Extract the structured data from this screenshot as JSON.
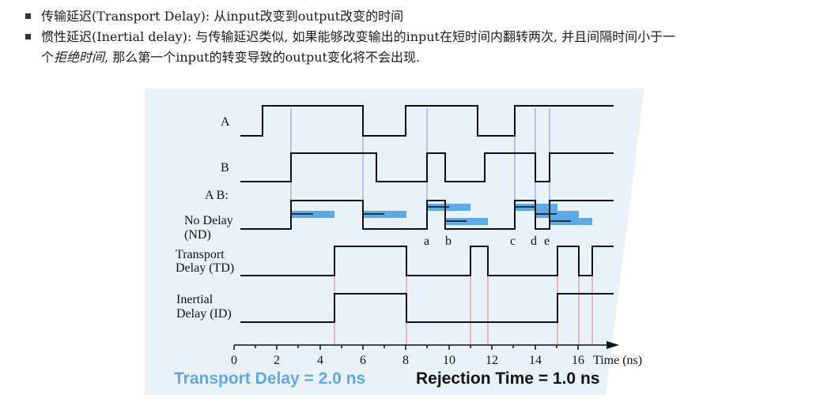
{
  "bullets": [
    {
      "text": "传输延迟(Transport Delay): 从input改变到output改变的时间"
    },
    {
      "line1": "惯性延迟(Inertial delay): 与传输延迟类似, 如果能够改变输出的input在短时间内翻转两次, 并且间隔时间小于一",
      "line2_prefix": "个",
      "line2_italic": "拒绝时间",
      "line2_suffix": ", 那么第一个input的转变导致的output变化将不会出现."
    }
  ],
  "figure": {
    "signal_labels": {
      "a": "A",
      "b": "B",
      "ab": "A B:",
      "nd1": "No Delay",
      "nd2": "(ND)",
      "td1": "Transport",
      "td2": "Delay (TD)",
      "id1": "Inertial",
      "id2": "Delay (ID)"
    },
    "event_letters": [
      "a",
      "b",
      "c",
      "d",
      "e"
    ],
    "axis_ticks": [
      "0",
      "2",
      "4",
      "6",
      "8",
      "10",
      "12",
      "14",
      "16"
    ],
    "axis_unit": "Time (ns)",
    "transport_caption": "Transport Delay = 2.0 ns",
    "rejection_caption": "Rejection Time = 1.0 ns",
    "colors": {
      "panel": "#e9f2f8",
      "blue_bar": "#5ea8e3",
      "guide_blue": "#8a8ee0",
      "guide_red": "#e08080",
      "signal": "#111111"
    }
  }
}
